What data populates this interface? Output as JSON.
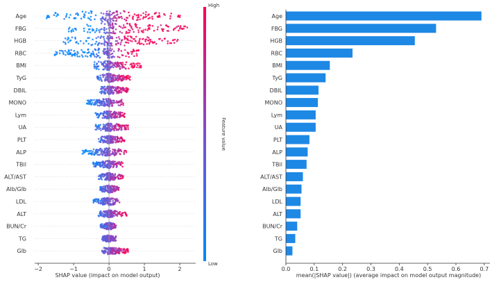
{
  "chart_data": [
    {
      "type": "scatter",
      "subtype": "shap-beeswarm",
      "features": [
        "Age",
        "FBG",
        "HGB",
        "RBC",
        "BMI",
        "TyG",
        "DBIL",
        "MONO",
        "Lym",
        "UA",
        "PLT",
        "ALP",
        "TBil",
        "ALT/AST",
        "Alb/Glb",
        "LDL",
        "ALT",
        "BUN/Cr",
        "TG",
        "Glb"
      ],
      "xlabel": "SHAP value (impact on model output)",
      "xticks": [
        -2,
        -1,
        0,
        1,
        2
      ],
      "xlim": [
        -2.1,
        2.45
      ],
      "spread": [
        {
          "min": -1.8,
          "max": 2.1,
          "width": 1.0
        },
        {
          "min": -1.2,
          "max": 2.3,
          "width": 0.95
        },
        {
          "min": -1.3,
          "max": 2.0,
          "width": 0.9
        },
        {
          "min": -1.6,
          "max": 0.85,
          "width": 0.8
        },
        {
          "min": -0.45,
          "max": 0.95,
          "width": 0.7
        },
        {
          "min": -0.35,
          "max": 0.6,
          "width": 0.6
        },
        {
          "min": -0.25,
          "max": 0.55,
          "width": 0.55
        },
        {
          "min": -0.65,
          "max": 0.45,
          "width": 0.5
        },
        {
          "min": -0.4,
          "max": 0.45,
          "width": 0.5
        },
        {
          "min": -0.4,
          "max": 0.55,
          "width": 0.55
        },
        {
          "min": -0.3,
          "max": 0.45,
          "width": 0.5
        },
        {
          "min": -0.75,
          "max": 0.5,
          "width": 0.5
        },
        {
          "min": -0.45,
          "max": 0.4,
          "width": 0.45
        },
        {
          "min": -0.3,
          "max": 0.4,
          "width": 0.45
        },
        {
          "min": -0.25,
          "max": 0.3,
          "width": 0.45
        },
        {
          "min": -0.5,
          "max": 0.3,
          "width": 0.45
        },
        {
          "min": -0.3,
          "max": 0.5,
          "width": 0.4
        },
        {
          "min": -0.25,
          "max": 0.2,
          "width": 0.4
        },
        {
          "min": -0.2,
          "max": 0.2,
          "width": 0.4
        },
        {
          "min": -0.2,
          "max": 0.55,
          "width": 0.35
        }
      ],
      "colorbar": {
        "label": "Feature value",
        "high_label": "High",
        "low_label": "Low",
        "high_color": "#ff0052",
        "low_color": "#008bfb"
      }
    },
    {
      "type": "bar",
      "orientation": "horizontal",
      "categories": [
        "Age",
        "FBG",
        "HGB",
        "RBC",
        "BMI",
        "TyG",
        "DBIL",
        "MONO",
        "Lym",
        "UA",
        "PLT",
        "ALP",
        "TBil",
        "ALT/AST",
        "Alb/Glb",
        "LDL",
        "ALT",
        "BUN/Cr",
        "TG",
        "Glb"
      ],
      "values": [
        0.69,
        0.53,
        0.455,
        0.235,
        0.155,
        0.14,
        0.115,
        0.113,
        0.105,
        0.105,
        0.083,
        0.077,
        0.073,
        0.06,
        0.055,
        0.052,
        0.052,
        0.04,
        0.033,
        0.023
      ],
      "xlabel": "mean(|SHAP value|) (average impact on model output magnitude)",
      "xticks": [
        "0.0",
        "0.1",
        "0.2",
        "0.3",
        "0.4",
        "0.5",
        "0.6",
        "0.7"
      ],
      "xlim": [
        0,
        0.72
      ],
      "bar_color": "#1e88e5"
    }
  ]
}
